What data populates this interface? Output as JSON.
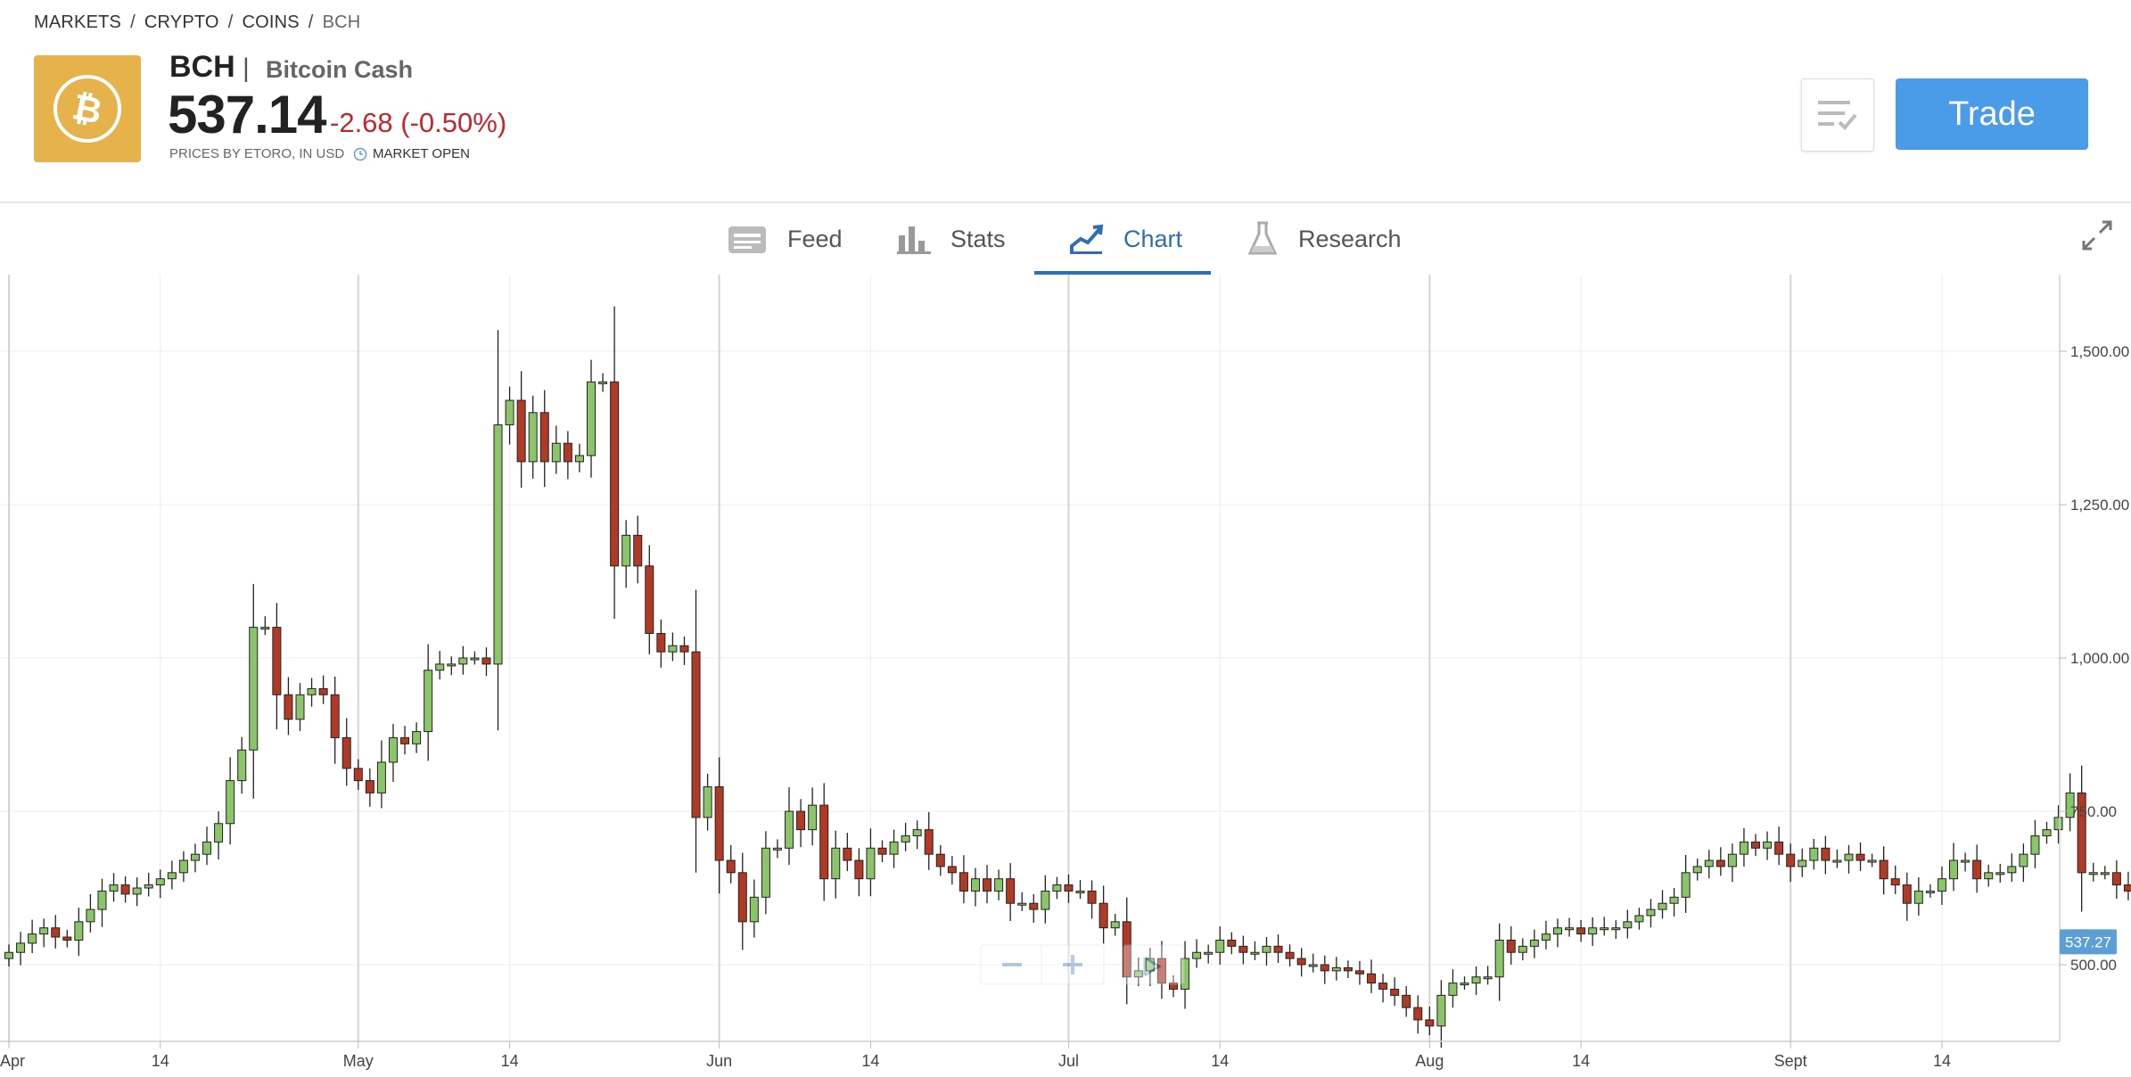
{
  "breadcrumb": [
    "MARKETS",
    "CRYPTO",
    "COINS",
    "BCH"
  ],
  "instrument": {
    "symbol": "BCH",
    "name": "Bitcoin Cash",
    "price": "537.14",
    "change": "-2.68 (-0.50%)",
    "source_note": "PRICES BY ETORO, IN USD",
    "market_status": "MARKET OPEN"
  },
  "actions": {
    "trade_label": "Trade"
  },
  "tabs": [
    {
      "label": "Feed",
      "icon": "feed-icon",
      "active": false
    },
    {
      "label": "Stats",
      "icon": "stats-icon",
      "active": false
    },
    {
      "label": "Chart",
      "icon": "chart-icon",
      "active": true
    },
    {
      "label": "Research",
      "icon": "research-icon",
      "active": false
    }
  ],
  "colors": {
    "brand_logo": "#e6b24b",
    "trade_button": "#4a9be8",
    "negative": "#c0272d",
    "active_tab": "#2f6db5",
    "candle_up": "#8cc46a",
    "candle_down": "#b03a26"
  },
  "chart_data": {
    "type": "candlestick",
    "ylim": [
      375,
      1625
    ],
    "y_ticks": [
      "1,500.00",
      "1,250.00",
      "1,000.00",
      "750.00",
      "500.00"
    ],
    "y_tick_values": [
      1500,
      1250,
      1000,
      750,
      500
    ],
    "x_ticks": [
      "Apr",
      "14",
      "May",
      "14",
      "Jun",
      "14",
      "Jul",
      "14",
      "Aug",
      "14",
      "Sept",
      "14"
    ],
    "x_tick_days": [
      0,
      13,
      30,
      43,
      61,
      74,
      91,
      104,
      122,
      135,
      153,
      166
    ],
    "major_tick_days": [
      0,
      30,
      61,
      91,
      122,
      153
    ],
    "last_price_label": "537.27",
    "last_price": 537.27,
    "closes": [
      520,
      535,
      550,
      560,
      545,
      540,
      570,
      590,
      620,
      630,
      615,
      625,
      630,
      640,
      650,
      670,
      680,
      700,
      730,
      800,
      850,
      1050,
      1050,
      940,
      900,
      940,
      950,
      940,
      870,
      820,
      800,
      780,
      830,
      870,
      860,
      880,
      980,
      990,
      990,
      1000,
      1000,
      990,
      1380,
      1420,
      1320,
      1400,
      1320,
      1350,
      1320,
      1330,
      1450,
      1450,
      1150,
      1200,
      1150,
      1040,
      1010,
      1020,
      1010,
      740,
      790,
      670,
      650,
      570,
      610,
      690,
      690,
      750,
      720,
      760,
      640,
      690,
      670,
      640,
      690,
      680,
      700,
      710,
      720,
      680,
      660,
      650,
      620,
      640,
      620,
      640,
      600,
      600,
      590,
      620,
      630,
      620,
      620,
      600,
      560,
      570,
      480,
      490,
      510,
      470,
      460,
      510,
      520,
      520,
      540,
      530,
      520,
      520,
      530,
      520,
      510,
      500,
      500,
      490,
      495,
      490,
      485,
      470,
      460,
      450,
      430,
      410,
      400,
      450,
      470,
      470,
      480,
      480,
      540,
      520,
      530,
      540,
      550,
      560,
      560,
      550,
      560,
      560,
      560,
      570,
      580,
      590,
      600,
      610,
      650,
      660,
      670,
      660,
      680,
      700,
      690,
      700,
      680,
      660,
      670,
      690,
      670,
      670,
      680,
      670,
      670,
      640,
      630,
      600,
      620,
      620,
      640,
      670,
      670,
      640,
      650,
      650,
      660,
      680,
      710,
      720,
      740,
      780,
      650,
      650,
      650,
      630,
      620,
      620,
      640,
      630,
      630,
      640,
      640,
      640,
      620,
      620,
      620,
      540,
      537
    ]
  }
}
